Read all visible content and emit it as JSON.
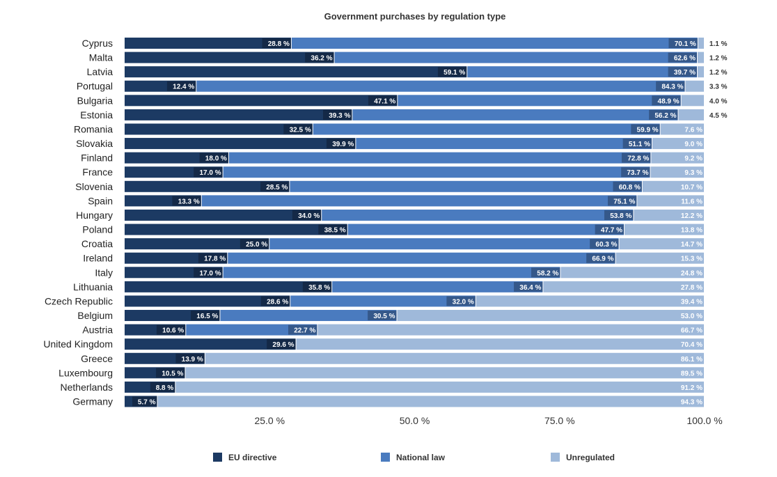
{
  "chart_data": {
    "type": "bar",
    "orientation": "horizontal",
    "stacked": "percent",
    "title": "Government purchases by regulation type",
    "xlabel": "",
    "ylabel": "",
    "xlim": [
      0,
      100
    ],
    "x_ticks": [
      "25.0 %",
      "50.0 %",
      "75.0 %",
      "100.0 %"
    ],
    "grid": false,
    "legend_position": "bottom",
    "categories": [
      "Cyprus",
      "Malta",
      "Latvia",
      "Portugal",
      "Bulgaria",
      "Estonia",
      "Romania",
      "Slovakia",
      "Finland",
      "France",
      "Slovenia",
      "Spain",
      "Hungary",
      "Poland",
      "Croatia",
      "Ireland",
      "Italy",
      "Lithuania",
      "Czech Republic",
      "Belgium",
      "Austria",
      "United Kingdom",
      "Greece",
      "Luxembourg",
      "Netherlands",
      "Germany"
    ],
    "series": [
      {
        "name": "EU directive",
        "color": "#1c3a63",
        "values": [
          28.8,
          36.2,
          59.1,
          12.4,
          47.1,
          39.3,
          32.5,
          39.9,
          18.0,
          17.0,
          28.5,
          13.3,
          34.0,
          38.5,
          25.0,
          17.8,
          17.0,
          35.8,
          28.6,
          16.5,
          10.6,
          29.6,
          13.9,
          10.5,
          8.8,
          5.7
        ],
        "labels": [
          "28.8 %",
          "36.2 %",
          "59.1 %",
          "12.4 %",
          "47.1 %",
          "39.3 %",
          "32.5 %",
          "39.9 %",
          "18.0 %",
          "17.0 %",
          "28.5 %",
          "13.3 %",
          "34.0 %",
          "38.5 %",
          "25.0 %",
          "17.8 %",
          "17.0 %",
          "35.8 %",
          "28.6 %",
          "16.5 %",
          "10.6 %",
          "29.6 %",
          "13.9 %",
          "10.5 %",
          "8.8 %",
          "5.7 %"
        ]
      },
      {
        "name": "National law",
        "color": "#4a7bbf",
        "values": [
          70.1,
          62.6,
          39.7,
          84.3,
          48.9,
          56.2,
          59.9,
          51.1,
          72.8,
          73.7,
          60.8,
          75.1,
          53.8,
          47.7,
          60.3,
          66.9,
          58.2,
          36.4,
          32.0,
          30.5,
          22.7,
          0,
          0,
          0,
          0,
          0
        ],
        "labels": [
          "70.1 %",
          "62.6 %",
          "39.7 %",
          "84.3 %",
          "48.9 %",
          "56.2 %",
          "59.9 %",
          "51.1 %",
          "72.8 %",
          "73.7 %",
          "60.8 %",
          "75.1 %",
          "53.8 %",
          "47.7 %",
          "60.3 %",
          "66.9 %",
          "58.2 %",
          "36.4 %",
          "32.0 %",
          "30.5 %",
          "22.7 %",
          "",
          "",
          "",
          "",
          ""
        ]
      },
      {
        "name": "Unregulated",
        "color": "#9fb9da",
        "values": [
          1.1,
          1.2,
          1.2,
          3.3,
          4.0,
          4.5,
          7.6,
          9.0,
          9.2,
          9.3,
          10.7,
          11.6,
          12.2,
          13.8,
          14.7,
          15.3,
          24.8,
          27.8,
          39.4,
          53.0,
          66.7,
          70.4,
          86.1,
          89.5,
          91.2,
          94.3
        ],
        "labels": [
          "1.1 %",
          "1.2 %",
          "1.2 %",
          "3.3 %",
          "4.0 %",
          "4.5 %",
          "7.6 %",
          "9.0 %",
          "9.2 %",
          "9.3 %",
          "10.7 %",
          "11.6 %",
          "12.2 %",
          "13.8 %",
          "14.7 %",
          "15.3 %",
          "24.8 %",
          "27.8 %",
          "39.4 %",
          "53.0 %",
          "66.7 %",
          "70.4 %",
          "86.1 %",
          "89.5 %",
          "91.2 %",
          "94.3 %"
        ]
      }
    ]
  }
}
